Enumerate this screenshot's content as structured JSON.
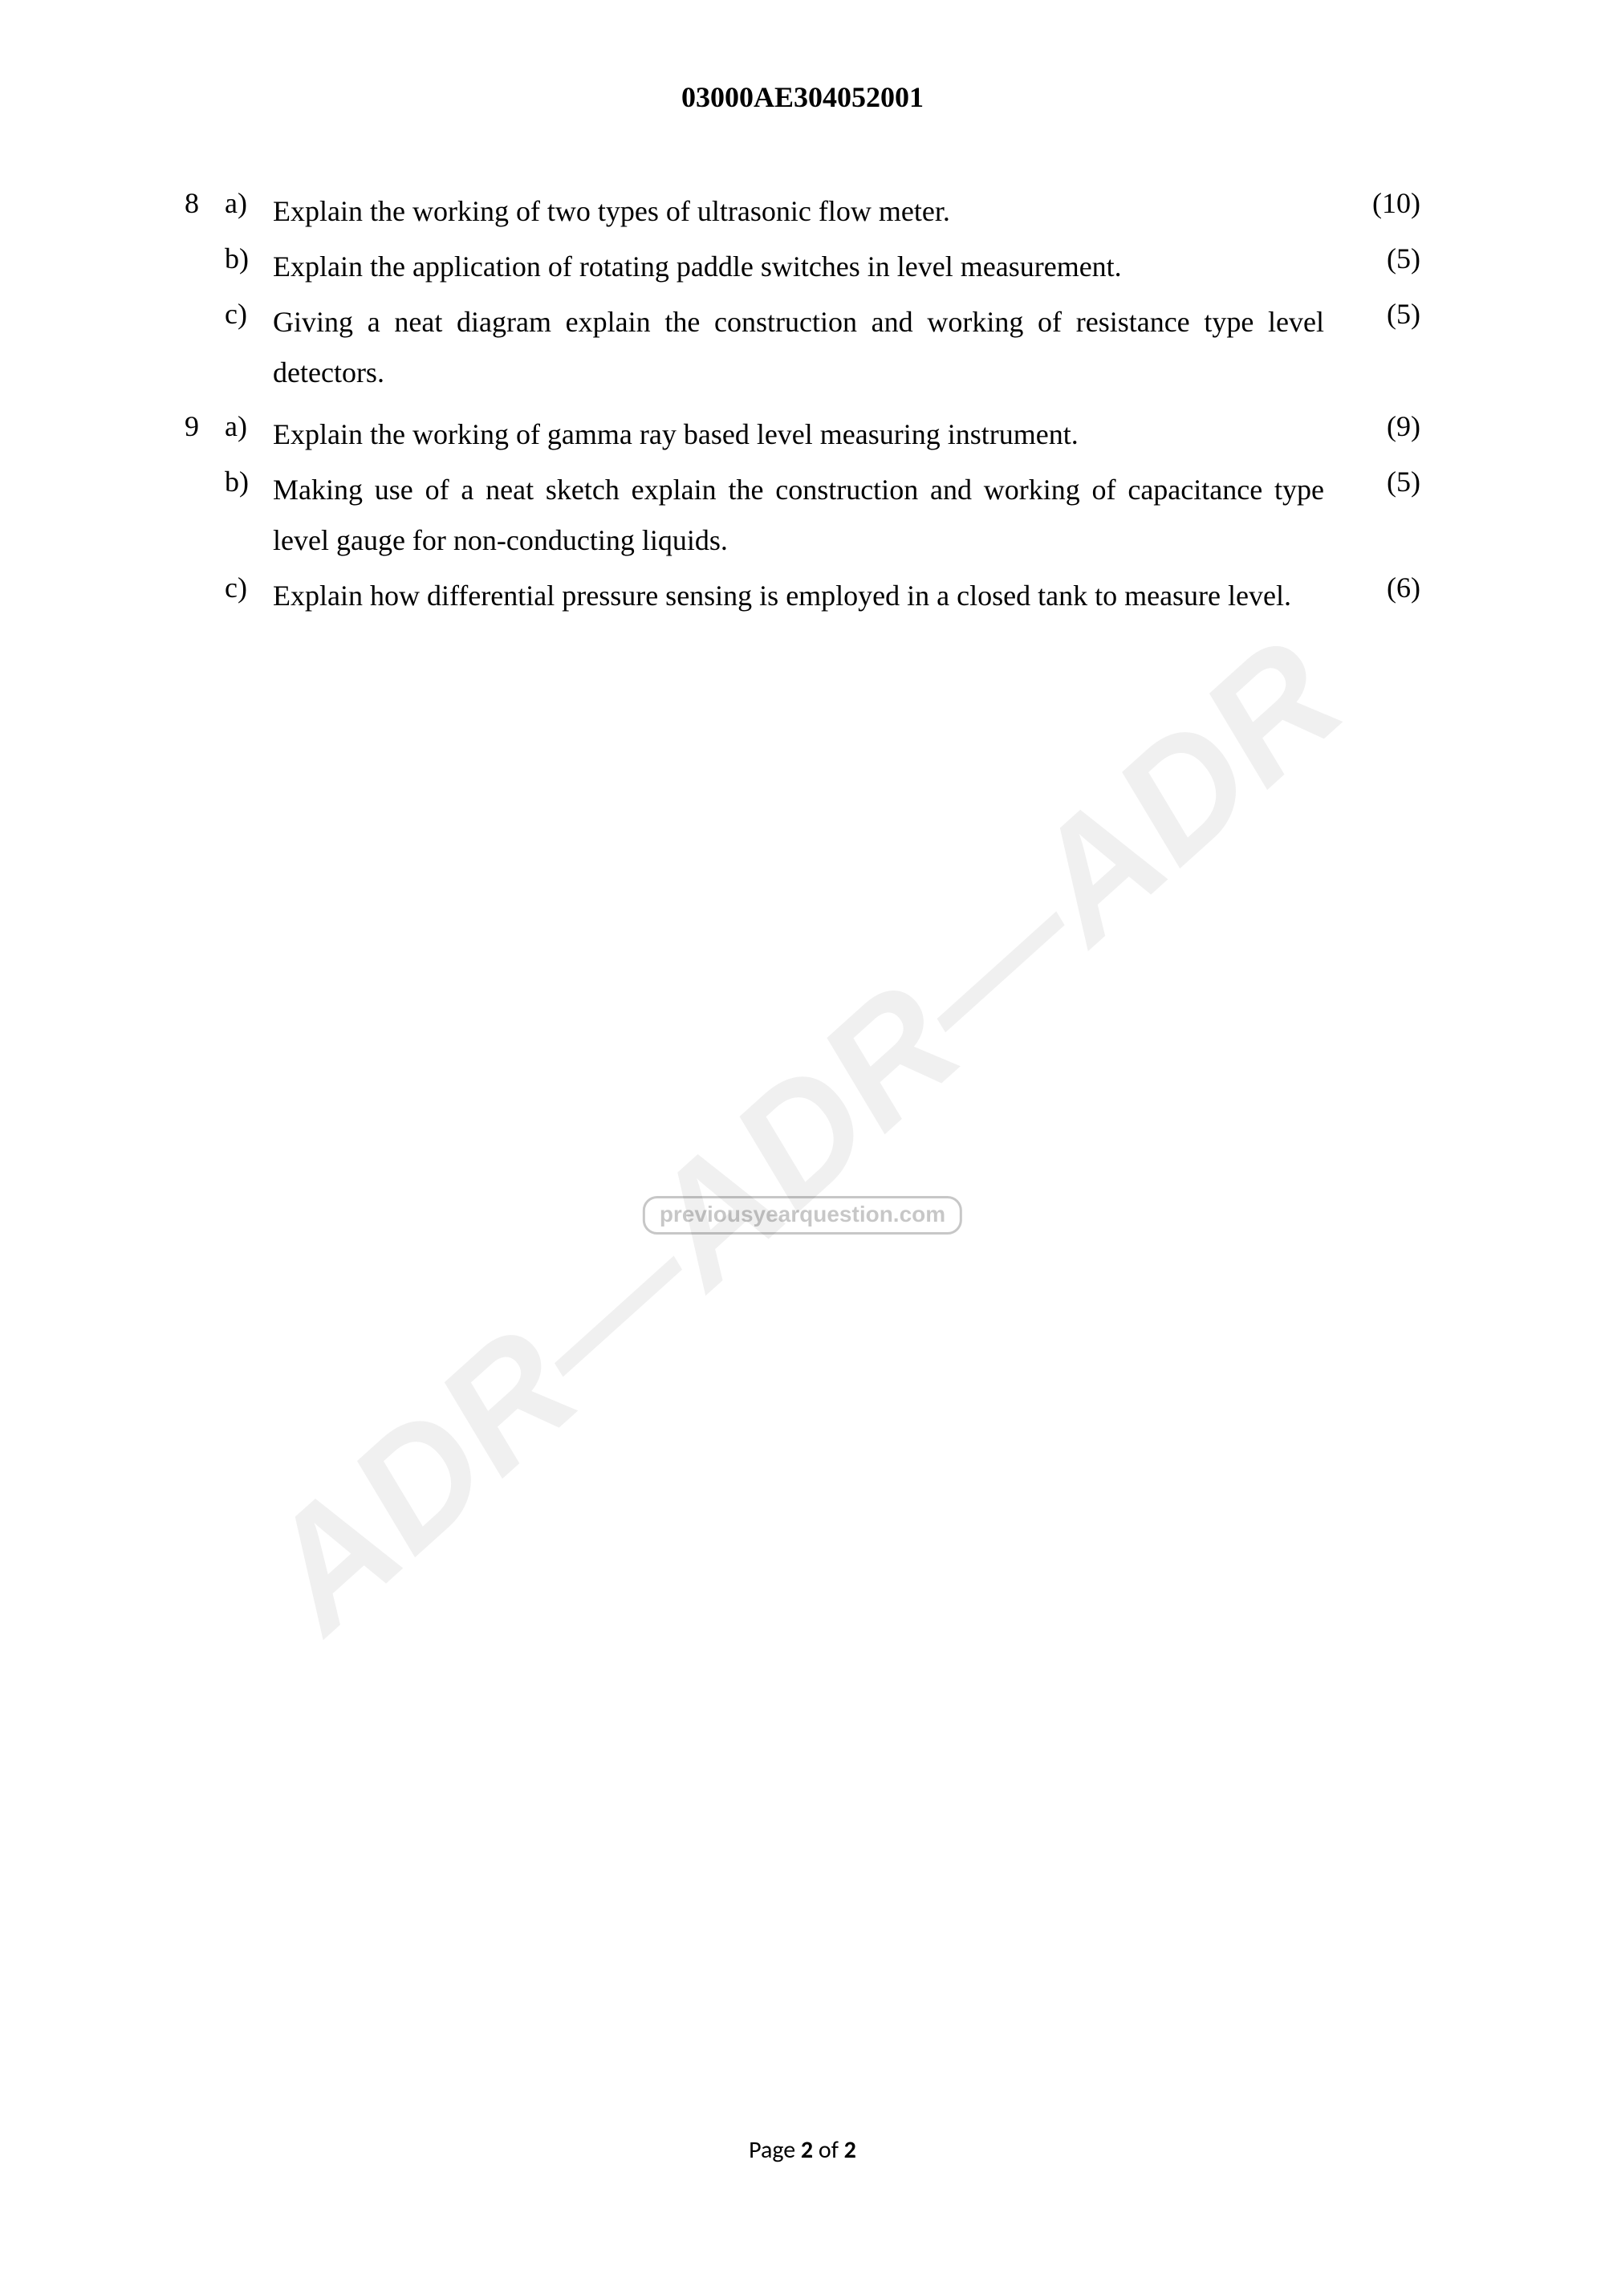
{
  "header": {
    "code": "03000AE304052001"
  },
  "questions": [
    {
      "num": "8",
      "parts": [
        {
          "label": "a)",
          "text": "Explain the working of two types of ultrasonic flow meter.",
          "marks": "(10)",
          "justify": false
        },
        {
          "label": "b)",
          "text": "Explain the application of rotating paddle switches in level measurement.",
          "marks": "(5)",
          "justify": false
        },
        {
          "label": "c)",
          "text": "Giving a neat diagram explain the construction and working of resistance type level detectors.",
          "marks": "(5)",
          "justify": true
        }
      ]
    },
    {
      "num": "9",
      "parts": [
        {
          "label": "a)",
          "text": " Explain the working of gamma ray based level measuring instrument.",
          "marks": "(9)",
          "justify": false
        },
        {
          "label": "b)",
          "text": "Making use of a neat sketch explain the construction and working of capacitance type level gauge for non-conducting liquids.",
          "marks": "(5)",
          "justify": true
        },
        {
          "label": "c)",
          "text": "Explain how differential pressure sensing is employed in a closed tank to measure level.",
          "marks": "(6)",
          "justify": true
        }
      ]
    }
  ],
  "watermark": {
    "diagonal": "ADR—ADR—ADR",
    "pill": "previousyearquestion.com"
  },
  "footer": {
    "prefix": "Page ",
    "current": "2",
    "sep": " of ",
    "total": "2"
  }
}
